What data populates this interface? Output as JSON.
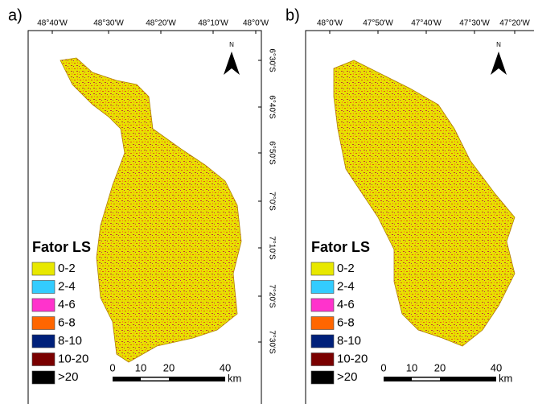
{
  "panels": [
    {
      "label": "a)",
      "top_ticks": [
        "48°40'W",
        "48°30'W",
        "48°20'W",
        "48°10'W",
        "48°0'W"
      ],
      "right_ticks": [
        "6°30'S",
        "6°40'S",
        "6°50'S",
        "7°0'S",
        "7°10'S",
        "7°20'S",
        "7°30'S"
      ],
      "north": "N",
      "legend": {
        "title": "Fator LS",
        "items": [
          {
            "label": "0-2",
            "color": "#e8e800"
          },
          {
            "label": "2-4",
            "color": "#33ccff"
          },
          {
            "label": "4-6",
            "color": "#ff33cc"
          },
          {
            "label": "6-8",
            "color": "#ff6600"
          },
          {
            "label": "8-10",
            "color": "#00207a"
          },
          {
            "label": "10-20",
            "color": "#7a0000"
          },
          {
            "label": ">20",
            "color": "#000000"
          }
        ]
      },
      "scale": {
        "ticks": [
          "0",
          "10",
          "20",
          "40"
        ],
        "unit": "km"
      }
    },
    {
      "label": "b)",
      "top_ticks": [
        "48°0'W",
        "47°50'W",
        "47°40'W",
        "47°30'W",
        "47°20'W"
      ],
      "north": "N",
      "legend": {
        "title": "Fator LS",
        "items": [
          {
            "label": "0-2",
            "color": "#e8e800"
          },
          {
            "label": "2-4",
            "color": "#33ccff"
          },
          {
            "label": "4-6",
            "color": "#ff33cc"
          },
          {
            "label": "6-8",
            "color": "#ff6600"
          },
          {
            "label": "8-10",
            "color": "#00207a"
          },
          {
            "label": "10-20",
            "color": "#7a0000"
          },
          {
            "label": ">20",
            "color": "#000000"
          }
        ]
      },
      "scale": {
        "ticks": [
          "0",
          "10",
          "20",
          "40"
        ],
        "unit": "km"
      }
    }
  ]
}
